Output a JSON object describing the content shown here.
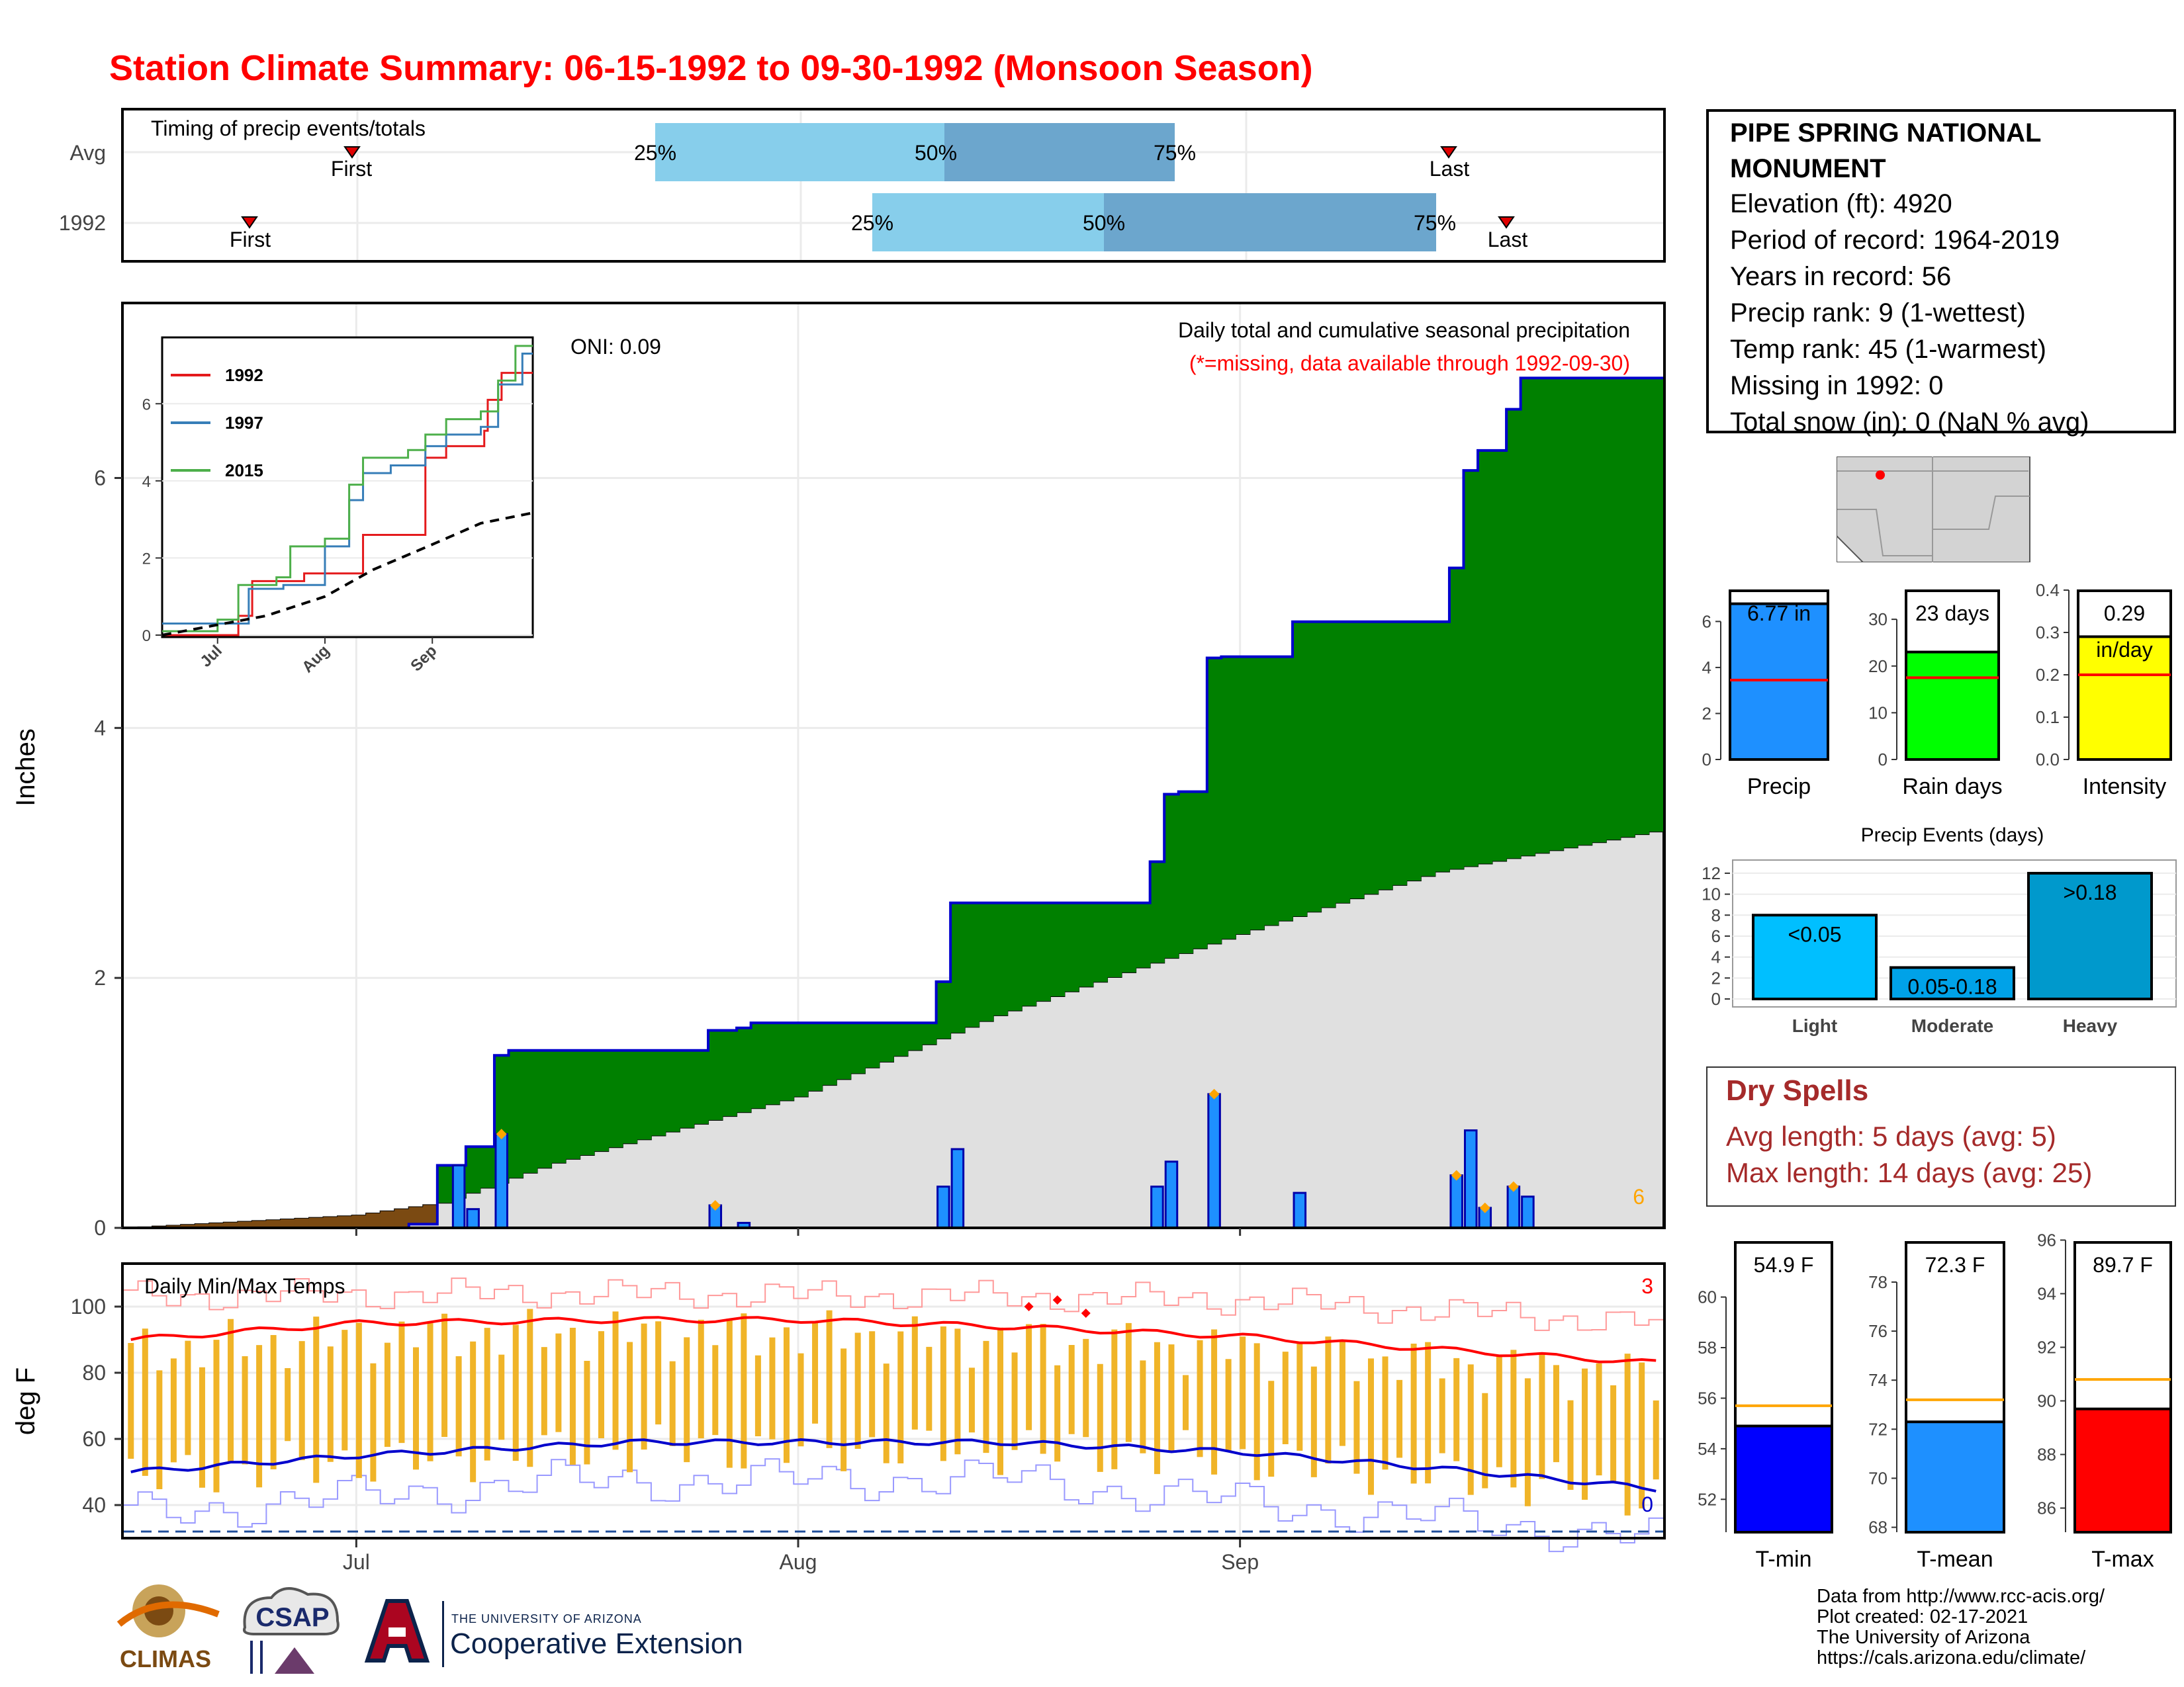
{
  "title": "Station Climate Summary: 06-15-1992 to 09-30-1992 (Monsoon Season)",
  "colors": {
    "title": "#ff0000",
    "cum_green": "#008000",
    "cum_outline": "#0000cc",
    "climo_gray": "#e0e0e0",
    "early_brown": "#7b4a12",
    "daily_bar": "#1e90ff",
    "quartile_light": "#87ceeb",
    "quartile_dark": "#6ca6cd",
    "tmax_line": "#ff0000",
    "tmin_line": "#0000cc",
    "temp_bar": "#f0b428",
    "dry_spell_text": "#a52a2a"
  },
  "timing": {
    "label": "Timing of precip events/totals",
    "rows": [
      {
        "label": "Avg",
        "first": "First",
        "last": "Last",
        "p25": "25%",
        "p50": "50%",
        "p75": "75%"
      },
      {
        "label": "1992",
        "first": "First",
        "last": "Last",
        "p25": "25%",
        "p50": "50%",
        "p75": "75%"
      }
    ]
  },
  "precip_panel": {
    "ylabel": "Inches",
    "heading": "Daily total and cumulative seasonal precipitation",
    "subheading": "(*=missing, data available through 1992-09-30)",
    "oni": "ONI: 0.09",
    "corner_count": "6",
    "y_ticks": [
      "0",
      "2",
      "4",
      "6"
    ],
    "inset_legend": [
      "1992",
      "1997",
      "2015"
    ],
    "inset_x_ticks": [
      "Jul",
      "Aug",
      "Sep"
    ],
    "inset_y_ticks": [
      "0",
      "2",
      "4",
      "6"
    ]
  },
  "temp_panel": {
    "ylabel": "deg F",
    "label": "Daily Min/Max Temps",
    "count_top": "3",
    "count_bottom": "0",
    "y_ticks": [
      "40",
      "60",
      "80",
      "100"
    ]
  },
  "x_ticks": [
    "Jul",
    "Aug",
    "Sep"
  ],
  "station": {
    "name_line1": "PIPE SPRING NATIONAL",
    "name_line2": "MONUMENT",
    "lines": [
      "Elevation (ft): 4920",
      "Period of record: 1964-2019",
      "Years in record: 56",
      "Precip rank: 9 (1-wettest)",
      "Temp rank: 45 (1-warmest)",
      "Missing in 1992: 0",
      "Total snow (in): 0 (NaN % avg)"
    ]
  },
  "summary_bars": {
    "precip": {
      "value_label": "6.77 in",
      "axis_label": "Precip",
      "ticks": [
        "0",
        "2",
        "4",
        "6"
      ]
    },
    "rain_days": {
      "value_label": "23 days",
      "axis_label": "Rain days",
      "ticks": [
        "0",
        "10",
        "20",
        "30"
      ]
    },
    "intensity": {
      "value_label": "0.29",
      "unit_label": "in/day",
      "axis_label": "Intensity",
      "ticks": [
        "0.0",
        "0.1",
        "0.2",
        "0.3",
        "0.4"
      ]
    }
  },
  "events": {
    "title": "Precip Events (days)",
    "ticks": [
      "0",
      "2",
      "4",
      "6",
      "8",
      "10",
      "12"
    ],
    "bars": [
      {
        "category": "Light",
        "label": "<0.05",
        "value": 8
      },
      {
        "category": "Moderate",
        "label": "0.05-0.18",
        "value": 3
      },
      {
        "category": "Heavy",
        "label": ">0.18",
        "value": 12
      }
    ]
  },
  "dry_spells": {
    "title": "Dry Spells",
    "avg_line": "Avg length: 5 days (avg: 5)",
    "max_line": "Max length: 14 days (avg: 25)"
  },
  "temp_summary": {
    "tmin": {
      "value_label": "54.9 F",
      "axis_label": "T-min",
      "ticks": [
        "52",
        "54",
        "56",
        "58",
        "60"
      ]
    },
    "tmean": {
      "value_label": "72.3 F",
      "axis_label": "T-mean",
      "ticks": [
        "68",
        "70",
        "72",
        "74",
        "76",
        "78"
      ]
    },
    "tmax": {
      "value_label": "89.7 F",
      "axis_label": "T-max",
      "ticks": [
        "86",
        "88",
        "90",
        "92",
        "94",
        "96"
      ]
    }
  },
  "footer": {
    "lines": [
      "Data from http://www.rcc-acis.org/",
      "Plot created: 02-17-2021",
      "The University of Arizona",
      "https://cals.arizona.edu/climate/"
    ]
  },
  "logos": {
    "climas": "CLIMAS",
    "csap": "CSAP",
    "ua_small": "THE UNIVERSITY OF ARIZONA",
    "ua_big": "Cooperative Extension"
  },
  "chart_data": [
    {
      "type": "line",
      "title": "Daily total and cumulative seasonal precipitation",
      "ylabel": "Inches",
      "ylim": [
        0,
        7.4
      ],
      "x_range": [
        "1992-06-15",
        "1992-09-30"
      ],
      "series": [
        {
          "name": "1992",
          "kind": "cumulative_step",
          "points": [
            [
              "06-15",
              0
            ],
            [
              "07-05",
              0.03
            ],
            [
              "07-07",
              0.5
            ],
            [
              "07-08",
              0.5
            ],
            [
              "07-09",
              0.65
            ],
            [
              "07-11",
              1.38
            ],
            [
              "07-12",
              1.42
            ],
            [
              "07-25",
              1.42
            ],
            [
              "07-26",
              1.58
            ],
            [
              "07-28",
              1.6
            ],
            [
              "07-29",
              1.64
            ],
            [
              "08-10",
              1.64
            ],
            [
              "08-11",
              1.97
            ],
            [
              "08-12",
              2.6
            ],
            [
              "08-25",
              2.6
            ],
            [
              "08-26",
              2.93
            ],
            [
              "08-27",
              3.47
            ],
            [
              "08-28",
              3.49
            ],
            [
              "08-29",
              3.49
            ],
            [
              "08-30",
              4.56
            ],
            [
              "08-31",
              4.57
            ],
            [
              "09-04",
              4.57
            ],
            [
              "09-05",
              4.85
            ],
            [
              "09-15",
              4.85
            ],
            [
              "09-16",
              5.28
            ],
            [
              "09-17",
              6.06
            ],
            [
              "09-18",
              6.22
            ],
            [
              "09-20",
              6.55
            ],
            [
              "09-21",
              6.8
            ],
            [
              "09-30",
              6.8
            ]
          ]
        },
        {
          "kind": "daily_bars",
          "points": [
            [
              "07-08",
              0.5
            ],
            [
              "07-09",
              0.15
            ],
            [
              "07-11",
              0.75
            ],
            [
              "07-26",
              0.18
            ],
            [
              "07-28",
              0.04
            ],
            [
              "08-11",
              0.33
            ],
            [
              "08-12",
              0.63
            ],
            [
              "08-26",
              0.33
            ],
            [
              "08-27",
              0.53
            ],
            [
              "08-30",
              1.07
            ],
            [
              "09-05",
              0.28
            ],
            [
              "09-16",
              0.42
            ],
            [
              "09-17",
              0.78
            ],
            [
              "09-18",
              0.16
            ],
            [
              "09-20",
              0.33
            ],
            [
              "09-21",
              0.25
            ]
          ]
        },
        {
          "kind": "climatology_cumulative",
          "points": [
            [
              "06-15",
              0
            ],
            [
              "07-01",
              0.1
            ],
            [
              "07-07",
              0.2
            ],
            [
              "07-15",
              0.52
            ],
            [
              "08-01",
              1.05
            ],
            [
              "08-15",
              1.7
            ],
            [
              "09-01",
              2.35
            ],
            [
              "09-15",
              2.85
            ],
            [
              "09-30",
              3.17
            ]
          ]
        }
      ]
    },
    {
      "type": "line",
      "title": "Daily Min/Max Temps",
      "ylabel": "deg F",
      "ylim": [
        30,
        113
      ],
      "series": [
        {
          "name": "Avg Tmax",
          "points": [
            [
              "06-15",
              90
            ],
            [
              "07-01",
              95
            ],
            [
              "07-20",
              96
            ],
            [
              "08-01",
              96
            ],
            [
              "08-15",
              94
            ],
            [
              "09-01",
              91
            ],
            [
              "09-15",
              87
            ],
            [
              "09-30",
              83
            ]
          ]
        },
        {
          "name": "Avg Tmin",
          "points": [
            [
              "06-15",
              50
            ],
            [
              "07-01",
              55
            ],
            [
              "07-20",
              59
            ],
            [
              "08-01",
              59
            ],
            [
              "08-15",
              59
            ],
            [
              "09-01",
              56
            ],
            [
              "09-15",
              51
            ],
            [
              "09-30",
              45
            ]
          ]
        },
        {
          "name": "Record high",
          "points": [
            [
              "06-15",
              103
            ],
            [
              "07-15",
              104
            ],
            [
              "08-15",
              103
            ],
            [
              "09-01",
              102
            ],
            [
              "09-30",
              95
            ]
          ]
        },
        {
          "name": "Record low",
          "points": [
            [
              "06-15",
              37
            ],
            [
              "07-15",
              47
            ],
            [
              "08-15",
              48
            ],
            [
              "09-01",
              41
            ],
            [
              "09-30",
              30
            ]
          ]
        }
      ],
      "freeze_line": 32
    },
    {
      "type": "line",
      "title": "Inset cumulative precipitation",
      "x_ticks": [
        "Jul",
        "Aug",
        "Sep"
      ],
      "ylim": [
        0,
        7.4
      ],
      "series": [
        {
          "name": "1992",
          "points": [
            [
              "06-15",
              0
            ],
            [
              "07-07",
              0.5
            ],
            [
              "07-11",
              1.4
            ],
            [
              "07-26",
              1.6
            ],
            [
              "08-12",
              2.6
            ],
            [
              "08-30",
              4.6
            ],
            [
              "09-05",
              4.9
            ],
            [
              "09-16",
              5.3
            ],
            [
              "09-17",
              6.1
            ],
            [
              "09-21",
              6.8
            ],
            [
              "09-30",
              6.8
            ]
          ]
        },
        {
          "name": "1997",
          "points": [
            [
              "06-15",
              0.3
            ],
            [
              "07-05",
              0.3
            ],
            [
              "07-10",
              1.2
            ],
            [
              "07-20",
              1.3
            ],
            [
              "08-01",
              2.3
            ],
            [
              "08-08",
              3.5
            ],
            [
              "08-12",
              4.2
            ],
            [
              "08-20",
              4.4
            ],
            [
              "08-30",
              4.9
            ],
            [
              "09-05",
              5.2
            ],
            [
              "09-15",
              5.4
            ],
            [
              "09-20",
              6.5
            ],
            [
              "09-27",
              7.3
            ],
            [
              "09-30",
              7.3
            ]
          ]
        },
        {
          "name": "2015",
          "points": [
            [
              "06-15",
              0.1
            ],
            [
              "07-01",
              0.4
            ],
            [
              "07-07",
              1.3
            ],
            [
              "07-18",
              1.5
            ],
            [
              "07-22",
              2.3
            ],
            [
              "08-01",
              2.5
            ],
            [
              "08-08",
              3.9
            ],
            [
              "08-12",
              4.6
            ],
            [
              "08-25",
              4.8
            ],
            [
              "08-30",
              5.2
            ],
            [
              "09-05",
              5.6
            ],
            [
              "09-15",
              5.8
            ],
            [
              "09-20",
              6.6
            ],
            [
              "09-25",
              7.5
            ],
            [
              "09-30",
              7.5
            ]
          ]
        },
        {
          "name": "Average",
          "points": [
            [
              "06-15",
              0
            ],
            [
              "07-15",
              0.5
            ],
            [
              "08-01",
              1.0
            ],
            [
              "08-15",
              1.7
            ],
            [
              "09-01",
              2.35
            ],
            [
              "09-15",
              2.9
            ],
            [
              "09-30",
              3.17
            ]
          ]
        }
      ]
    },
    {
      "type": "bar",
      "title": "Precip Events (days)",
      "categories": [
        "Light",
        "Moderate",
        "Heavy"
      ],
      "values": [
        8,
        3,
        12
      ],
      "ylim": [
        0,
        12.5
      ]
    },
    {
      "type": "bar",
      "title": "Seasonal totals",
      "categories": [
        "Precip",
        "Rain days",
        "Intensity"
      ],
      "values": [
        6.77,
        23,
        0.29
      ],
      "averages": [
        3.45,
        17.5,
        0.2
      ]
    },
    {
      "type": "bar",
      "title": "Seasonal temperatures",
      "categories": [
        "T-min",
        "T-mean",
        "T-max"
      ],
      "values": [
        54.9,
        72.3,
        89.7
      ],
      "averages": [
        55.7,
        73.2,
        90.8
      ]
    }
  ]
}
